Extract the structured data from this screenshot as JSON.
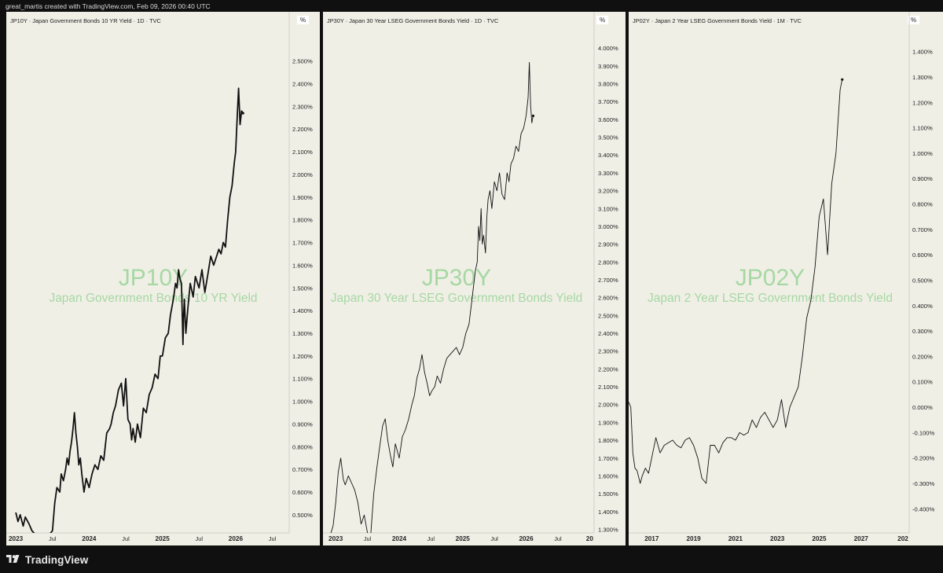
{
  "caption": "great_martis created with TradingView.com, Feb 09, 2026 00:40 UTC",
  "brand": "TradingView",
  "colors": {
    "page_background": "#101010",
    "panel_background": "#f0efe6",
    "line": "#111111",
    "watermark": "#a6d8a3",
    "axis_text": "#222222"
  },
  "panels": [
    {
      "header": "JP10Y · Japan Government Bonds 10 YR Yield · 1D · TVC",
      "unit_label": "%",
      "watermark_symbol": "JP10Y",
      "watermark_name": "Japan Government Bonds 10 YR Yield"
    },
    {
      "header": "JP30Y · Japan 30 Year LSEG Government Bonds Yield · 1D · TVC",
      "unit_label": "%",
      "watermark_symbol": "JP30Y",
      "watermark_name": "Japan 30 Year LSEG Government Bonds Yield"
    },
    {
      "header": "JP02Y · Japan 2 Year LSEG Government Bonds Yield · 1M · TVC",
      "unit_label": "%",
      "watermark_symbol": "JP02Y",
      "watermark_name": "Japan 2 Year LSEG Government Bonds Yield"
    }
  ],
  "chart_data": [
    {
      "type": "line",
      "title": "JP10Y · Japan Government Bonds 10 YR Yield · 1D · TVC",
      "series": [
        {
          "x": [
            2023.0,
            2023.03,
            2023.06,
            2023.1,
            2023.13,
            2023.18,
            2023.22,
            2023.3,
            2023.38,
            2023.45,
            2023.5,
            2023.53,
            2023.56,
            2023.6,
            2023.62,
            2023.65,
            2023.68,
            2023.7,
            2023.72,
            2023.74,
            2023.76,
            2023.78,
            2023.8,
            2023.82,
            2023.84,
            2023.86,
            2023.88,
            2023.9,
            2023.93,
            2023.96,
            2024.0,
            2024.04,
            2024.08,
            2024.12,
            2024.16,
            2024.2,
            2024.24,
            2024.28,
            2024.3,
            2024.33,
            2024.36,
            2024.4,
            2024.44,
            2024.47,
            2024.5,
            2024.53,
            2024.56,
            2024.58,
            2024.6,
            2024.63,
            2024.66,
            2024.7,
            2024.74,
            2024.78,
            2024.82,
            2024.86,
            2024.9,
            2024.94,
            2024.97,
            2025.0,
            2025.04,
            2025.08,
            2025.11,
            2025.15,
            2025.18,
            2025.2,
            2025.22,
            2025.24,
            2025.26,
            2025.27,
            2025.28,
            2025.29,
            2025.3,
            2025.32,
            2025.35,
            2025.38,
            2025.42,
            2025.45,
            2025.5,
            2025.54,
            2025.58,
            2025.62,
            2025.66,
            2025.7,
            2025.74,
            2025.77,
            2025.8,
            2025.83,
            2025.86,
            2025.89,
            2025.92,
            2025.95,
            2025.98,
            2026.0,
            2026.02,
            2026.04,
            2026.06,
            2026.08,
            2026.1
          ],
          "values": [
            0.51,
            0.47,
            0.5,
            0.45,
            0.49,
            0.46,
            0.43,
            0.4,
            0.38,
            0.41,
            0.43,
            0.55,
            0.62,
            0.6,
            0.68,
            0.65,
            0.7,
            0.75,
            0.72,
            0.78,
            0.82,
            0.88,
            0.95,
            0.86,
            0.8,
            0.72,
            0.75,
            0.68,
            0.6,
            0.66,
            0.62,
            0.68,
            0.72,
            0.7,
            0.76,
            0.74,
            0.86,
            0.88,
            0.9,
            0.95,
            0.98,
            1.05,
            1.08,
            0.98,
            1.1,
            0.92,
            0.9,
            0.83,
            0.88,
            0.82,
            0.9,
            0.84,
            0.97,
            0.95,
            1.03,
            1.06,
            1.12,
            1.1,
            1.2,
            1.2,
            1.28,
            1.3,
            1.38,
            1.45,
            1.52,
            1.5,
            1.58,
            1.54,
            1.52,
            1.4,
            1.25,
            1.38,
            1.45,
            1.3,
            1.42,
            1.52,
            1.46,
            1.55,
            1.5,
            1.58,
            1.48,
            1.56,
            1.64,
            1.6,
            1.64,
            1.67,
            1.65,
            1.7,
            1.68,
            1.8,
            1.9,
            1.95,
            2.05,
            2.1,
            2.25,
            2.38,
            2.22,
            2.28,
            2.27
          ]
        }
      ],
      "y_ticks": [
        "0.500%",
        "0.600%",
        "0.700%",
        "0.800%",
        "0.900%",
        "1.000%",
        "1.100%",
        "1.200%",
        "1.300%",
        "1.400%",
        "1.500%",
        "1.600%",
        "1.700%",
        "1.800%",
        "1.900%",
        "2.000%",
        "2.100%",
        "2.200%",
        "2.300%",
        "2.400%",
        "2.500%"
      ],
      "x_ticks": [
        "2023",
        "Jul",
        "2024",
        "Jul",
        "2025",
        "Jul",
        "2026",
        "Jul"
      ],
      "x_tick_positions": [
        2023.0,
        2023.5,
        2024.0,
        2024.5,
        2025.0,
        2025.5,
        2026.0,
        2026.5
      ],
      "ylim": [
        0.42,
        2.62
      ],
      "xlim": [
        2022.87,
        2026.73
      ],
      "grid": false
    },
    {
      "type": "line",
      "title": "JP30Y · Japan 30 Year LSEG Government Bonds Yield · 1D · TVC",
      "series": [
        {
          "x": [
            2022.85,
            2022.9,
            2022.96,
            2023.0,
            2023.04,
            2023.08,
            2023.12,
            2023.15,
            2023.2,
            2023.25,
            2023.3,
            2023.35,
            2023.4,
            2023.45,
            2023.5,
            2023.55,
            2023.6,
            2023.65,
            2023.7,
            2023.74,
            2023.78,
            2023.82,
            2023.86,
            2023.9,
            2023.94,
            2024.0,
            2024.05,
            2024.1,
            2024.15,
            2024.2,
            2024.24,
            2024.28,
            2024.32,
            2024.36,
            2024.4,
            2024.44,
            2024.48,
            2024.52,
            2024.56,
            2024.6,
            2024.65,
            2024.7,
            2024.75,
            2024.8,
            2024.85,
            2024.9,
            2024.95,
            2025.0,
            2025.05,
            2025.1,
            2025.15,
            2025.2,
            2025.23,
            2025.25,
            2025.27,
            2025.29,
            2025.31,
            2025.33,
            2025.36,
            2025.38,
            2025.4,
            2025.43,
            2025.46,
            2025.5,
            2025.54,
            2025.58,
            2025.62,
            2025.66,
            2025.7,
            2025.73,
            2025.76,
            2025.8,
            2025.84,
            2025.88,
            2025.92,
            2025.96,
            2026.0,
            2026.03,
            2026.05,
            2026.07,
            2026.09,
            2026.11
          ],
          "values": [
            1.27,
            1.25,
            1.32,
            1.45,
            1.62,
            1.7,
            1.58,
            1.55,
            1.6,
            1.56,
            1.52,
            1.45,
            1.33,
            1.38,
            1.28,
            1.26,
            1.5,
            1.65,
            1.78,
            1.88,
            1.92,
            1.8,
            1.72,
            1.65,
            1.78,
            1.7,
            1.82,
            1.86,
            1.92,
            2.0,
            2.05,
            2.15,
            2.2,
            2.28,
            2.18,
            2.12,
            2.05,
            2.08,
            2.1,
            2.16,
            2.12,
            2.2,
            2.26,
            2.28,
            2.3,
            2.32,
            2.28,
            2.32,
            2.4,
            2.45,
            2.6,
            2.75,
            2.8,
            3.0,
            2.92,
            3.1,
            2.9,
            2.95,
            2.85,
            3.05,
            3.15,
            3.2,
            3.1,
            3.25,
            3.2,
            3.3,
            3.18,
            3.15,
            3.3,
            3.25,
            3.35,
            3.38,
            3.45,
            3.42,
            3.52,
            3.55,
            3.62,
            3.72,
            3.92,
            3.68,
            3.58,
            3.62
          ]
        }
      ],
      "y_ticks": [
        "1.300%",
        "1.400%",
        "1.500%",
        "1.600%",
        "1.700%",
        "1.800%",
        "1.900%",
        "2.000%",
        "2.100%",
        "2.200%",
        "2.300%",
        "2.400%",
        "2.500%",
        "2.600%",
        "2.700%",
        "2.800%",
        "2.900%",
        "3.000%",
        "3.100%",
        "3.200%",
        "3.300%",
        "3.400%",
        "3.500%",
        "3.600%",
        "3.700%",
        "3.800%",
        "3.900%",
        "4.000%"
      ],
      "x_ticks": [
        "2023",
        "Jul",
        "2024",
        "Jul",
        "2025",
        "Jul",
        "2026",
        "Jul",
        "20"
      ],
      "x_tick_positions": [
        2023.0,
        2023.5,
        2024.0,
        2024.5,
        2025.0,
        2025.5,
        2026.0,
        2026.5,
        2027.0
      ],
      "ylim": [
        1.28,
        4.08
      ],
      "xlim": [
        2022.8,
        2027.07
      ],
      "grid": false
    },
    {
      "type": "line",
      "title": "JP02Y · Japan 2 Year LSEG Government Bonds Yield · 1M · TVC",
      "series": [
        {
          "x": [
            2015.9,
            2016.0,
            2016.1,
            2016.2,
            2016.3,
            2016.45,
            2016.55,
            2016.7,
            2016.85,
            2017.0,
            2017.2,
            2017.4,
            2017.6,
            2017.8,
            2018.0,
            2018.2,
            2018.4,
            2018.6,
            2018.8,
            2019.0,
            2019.2,
            2019.4,
            2019.6,
            2019.8,
            2020.0,
            2020.2,
            2020.4,
            2020.6,
            2020.8,
            2021.0,
            2021.2,
            2021.4,
            2021.6,
            2021.8,
            2022.0,
            2022.2,
            2022.4,
            2022.6,
            2022.8,
            2023.0,
            2023.2,
            2023.4,
            2023.6,
            2023.8,
            2024.0,
            2024.2,
            2024.4,
            2024.6,
            2024.8,
            2025.0,
            2025.2,
            2025.4,
            2025.6,
            2025.8,
            2026.0,
            2026.1
          ],
          "values": [
            0.02,
            0.0,
            -0.18,
            -0.24,
            -0.25,
            -0.3,
            -0.27,
            -0.24,
            -0.26,
            -0.2,
            -0.12,
            -0.18,
            -0.15,
            -0.14,
            -0.13,
            -0.15,
            -0.16,
            -0.13,
            -0.12,
            -0.15,
            -0.2,
            -0.28,
            -0.3,
            -0.15,
            -0.15,
            -0.18,
            -0.14,
            -0.12,
            -0.12,
            -0.13,
            -0.1,
            -0.11,
            -0.1,
            -0.05,
            -0.08,
            -0.04,
            -0.02,
            -0.05,
            -0.08,
            -0.05,
            0.03,
            -0.08,
            0.0,
            0.04,
            0.08,
            0.2,
            0.35,
            0.42,
            0.55,
            0.75,
            0.82,
            0.6,
            0.88,
            1.0,
            1.25,
            1.29
          ]
        }
      ],
      "y_ticks": [
        "-0.400%",
        "-0.300%",
        "-0.200%",
        "-0.100%",
        "0.000%",
        "0.100%",
        "0.200%",
        "0.300%",
        "0.400%",
        "0.500%",
        "0.600%",
        "0.700%",
        "0.800%",
        "0.900%",
        "1.000%",
        "1.100%",
        "1.200%",
        "1.300%",
        "1.400%"
      ],
      "x_ticks": [
        "2017",
        "2019",
        "2021",
        "2023",
        "2025",
        "2027",
        "202"
      ],
      "x_tick_positions": [
        2017.0,
        2019.0,
        2021.0,
        2023.0,
        2025.0,
        2027.0,
        2029.0
      ],
      "ylim": [
        -0.495,
        1.47
      ],
      "xlim": [
        2015.9,
        2029.3
      ],
      "grid": false
    }
  ]
}
